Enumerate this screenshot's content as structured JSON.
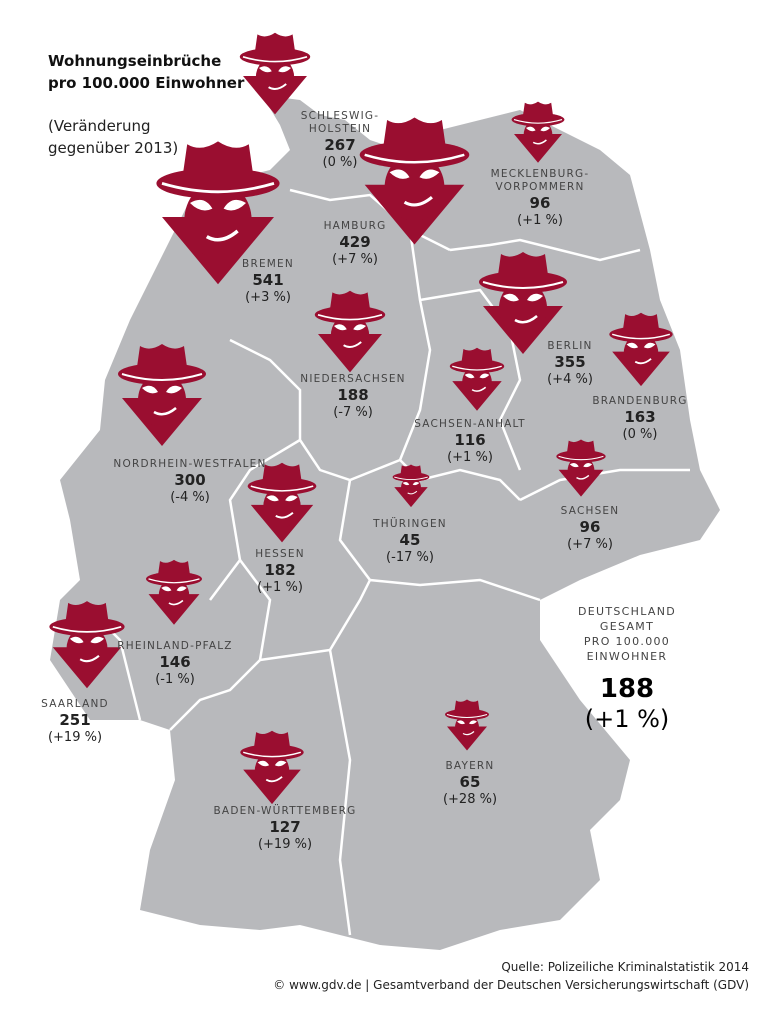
{
  "title": [
    "Wohnungseinbrüche",
    "pro 100.000 Einwohner"
  ],
  "subtitle": [
    "(Veränderung",
    "gegenüber 2013)"
  ],
  "colors": {
    "map": "#b8b9bc",
    "burglar": "#9a0e30",
    "border": "#ffffff"
  },
  "icon": "burglar-icon",
  "states": [
    {
      "name": "SCHLESWIG-HOLSTEIN",
      "value": "267",
      "change": "(0 %)"
    },
    {
      "name": "HAMBURG",
      "value": "429",
      "change": "(+7 %)"
    },
    {
      "name": "MECKLENBURG-VORPOMMERN",
      "value": "96",
      "change": "(+1 %)"
    },
    {
      "name": "BREMEN",
      "value": "541",
      "change": "(+3 %)"
    },
    {
      "name": "NIEDERSACHSEN",
      "value": "188",
      "change": "(-7 %)"
    },
    {
      "name": "BERLIN",
      "value": "355",
      "change": "(+4 %)"
    },
    {
      "name": "BRANDENBURG",
      "value": "163",
      "change": "(0 %)"
    },
    {
      "name": "NORDRHEIN-WESTFALEN",
      "value": "300",
      "change": "(-4 %)"
    },
    {
      "name": "SACHSEN-ANHALT",
      "value": "116",
      "change": "(+1 %)"
    },
    {
      "name": "THÜRINGEN",
      "value": "45",
      "change": "(-17 %)"
    },
    {
      "name": "SACHSEN",
      "value": "96",
      "change": "(+7 %)"
    },
    {
      "name": "HESSEN",
      "value": "182",
      "change": "(+1 %)"
    },
    {
      "name": "RHEINLAND-PFALZ",
      "value": "146",
      "change": "(-1 %)"
    },
    {
      "name": "SAARLAND",
      "value": "251",
      "change": "(+19 %)"
    },
    {
      "name": "BAYERN",
      "value": "65",
      "change": "(+28 %)"
    },
    {
      "name": "BADEN-WÜRTTEMBERG",
      "value": "127",
      "change": "(+19 %)"
    }
  ],
  "total": {
    "label1": "DEUTSCHLAND GESAMT",
    "label2": "PRO 100.000 EINWOHNER",
    "value": "188",
    "change": "(+1 %)"
  },
  "source": {
    "line1": "Quelle: Polizeiliche Kriminalstatistik 2014",
    "line2": "© www.gdv.de | Gesamtverband der Deutschen Versicherungswirtschaft (GDV)"
  }
}
